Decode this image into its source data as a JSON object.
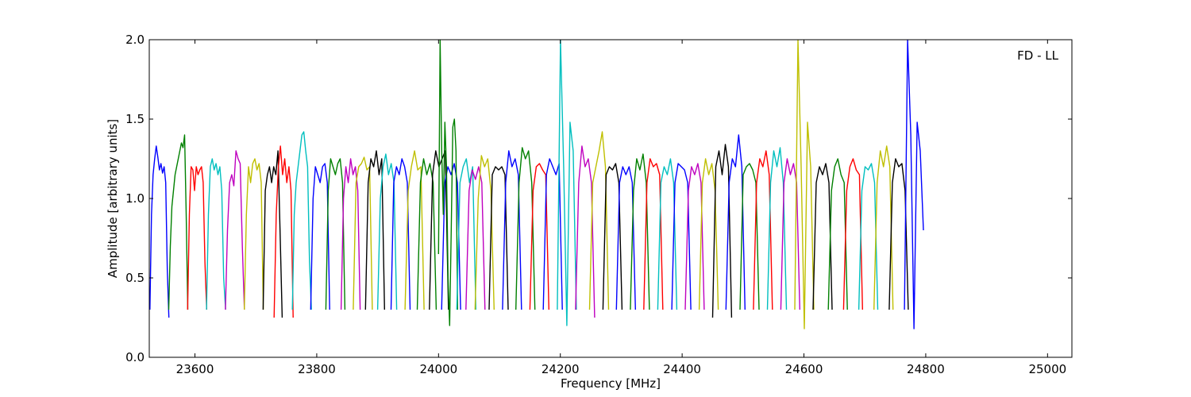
{
  "chart_data": {
    "type": "line",
    "xlabel": "Frequency [MHz]",
    "ylabel": "Amplitude [arbitrary units]",
    "annotation": "FD - LL",
    "xlim": [
      23525,
      25040
    ],
    "ylim": [
      0.0,
      2.0
    ],
    "x_ticks": [
      23600,
      23800,
      24000,
      24200,
      24400,
      24600,
      24800,
      25000
    ],
    "x_tick_labels": [
      "23600",
      "23800",
      "24000",
      "24200",
      "24400",
      "24600",
      "24800",
      "25000"
    ],
    "y_ticks": [
      0.0,
      0.5,
      1.0,
      1.5,
      2.0
    ],
    "y_tick_labels": [
      "0.0",
      "0.5",
      "1.0",
      "1.5",
      "2.0"
    ],
    "grid": false,
    "palette": [
      "#0000ff",
      "#008000",
      "#ff0000",
      "#00bfbf",
      "#bf00bf",
      "#bfbf00",
      "#000000"
    ],
    "segment_width_mhz": 31.25,
    "series": [
      {
        "start": 23526,
        "color": "#0000ff",
        "values": [
          0.3,
          0.9,
          1.15,
          1.25,
          1.33,
          1.26,
          1.18,
          1.22,
          1.16,
          1.2,
          1.1,
          0.55,
          0.25
        ]
      },
      {
        "start": 23557,
        "color": "#008000",
        "values": [
          0.3,
          0.7,
          0.95,
          1.05,
          1.15,
          1.2,
          1.25,
          1.3,
          1.35,
          1.32,
          1.4,
          0.9,
          0.3
        ]
      },
      {
        "start": 23588,
        "color": "#ff0000",
        "values": [
          0.3,
          0.9,
          1.2,
          1.18,
          1.05,
          1.2,
          1.15,
          1.18,
          1.2,
          1.1,
          0.6,
          0.3
        ]
      },
      {
        "start": 23619,
        "color": "#00bfbf",
        "values": [
          0.3,
          0.9,
          1.2,
          1.25,
          1.18,
          1.22,
          1.15,
          1.2,
          1.05,
          0.5,
          0.3
        ]
      },
      {
        "start": 23650,
        "color": "#bf00bf",
        "values": [
          0.3,
          0.8,
          1.1,
          1.15,
          1.08,
          1.3,
          1.25,
          1.22,
          0.7,
          0.3
        ]
      },
      {
        "start": 23681,
        "color": "#bfbf00",
        "values": [
          0.3,
          0.9,
          1.2,
          1.1,
          1.22,
          1.25,
          1.18,
          1.22,
          1.1,
          0.3
        ]
      },
      {
        "start": 23712,
        "color": "#000000",
        "values": [
          0.3,
          1.05,
          1.15,
          1.2,
          1.1,
          1.2,
          1.15,
          1.3,
          0.8,
          0.25
        ]
      },
      {
        "start": 23730,
        "color": "#ff0000",
        "values": [
          0.25,
          0.9,
          1.2,
          1.33,
          1.15,
          1.25,
          1.1,
          1.2,
          1.05,
          0.25
        ]
      },
      {
        "start": 23760,
        "color": "#00bfbf",
        "values": [
          0.3,
          0.9,
          1.1,
          1.2,
          1.3,
          1.4,
          1.42,
          1.3,
          1.2,
          0.6,
          0.3
        ]
      },
      {
        "start": 23790,
        "color": "#0000ff",
        "values": [
          0.3,
          1.0,
          1.2,
          1.15,
          1.1,
          1.2,
          1.22,
          1.1,
          0.3
        ]
      },
      {
        "start": 23815,
        "color": "#008000",
        "values": [
          0.3,
          1.05,
          1.25,
          1.2,
          1.15,
          1.22,
          1.25,
          1.1,
          0.3
        ]
      },
      {
        "start": 23840,
        "color": "#bf00bf",
        "values": [
          0.3,
          1.0,
          1.2,
          1.1,
          1.25,
          1.15,
          1.2,
          1.05,
          0.3
        ]
      },
      {
        "start": 23860,
        "color": "#bfbf00",
        "values": [
          0.3,
          1.1,
          1.2,
          1.22,
          1.26,
          1.18,
          1.2,
          0.3
        ]
      },
      {
        "start": 23880,
        "color": "#000000",
        "values": [
          0.3,
          1.1,
          1.25,
          1.2,
          1.3,
          1.15,
          1.25,
          0.3
        ]
      },
      {
        "start": 23900,
        "color": "#00bfbf",
        "values": [
          0.3,
          1.0,
          1.2,
          1.28,
          1.15,
          1.22,
          1.1,
          0.3
        ]
      },
      {
        "start": 23922,
        "color": "#0000ff",
        "values": [
          0.3,
          1.1,
          1.2,
          1.15,
          1.25,
          1.2,
          1.1,
          0.3
        ]
      },
      {
        "start": 23945,
        "color": "#bfbf00",
        "values": [
          0.3,
          1.05,
          1.2,
          1.3,
          1.18,
          1.2,
          0.3
        ]
      },
      {
        "start": 23965,
        "color": "#008000",
        "values": [
          0.3,
          1.1,
          1.25,
          1.15,
          1.22,
          1.1,
          0.3
        ]
      },
      {
        "start": 23985,
        "color": "#000000",
        "values": [
          0.3,
          1.15,
          1.3,
          1.2,
          1.25,
          1.3,
          0.3
        ]
      },
      {
        "start": 24005,
        "color": "#0000ff",
        "values": [
          0.3,
          1.1,
          1.2,
          1.15,
          1.22,
          1.1,
          0.3
        ]
      },
      {
        "start": 24000,
        "color": "#008000",
        "values": [
          0.65,
          2.0,
          1.3,
          0.9,
          1.48,
          1.2,
          0.5,
          0.2,
          0.8,
          1.45,
          1.5,
          1.3,
          0.3
        ]
      },
      {
        "start": 24030,
        "color": "#00bfbf",
        "values": [
          0.3,
          1.1,
          1.2,
          1.25,
          1.1,
          1.2,
          0.3
        ]
      },
      {
        "start": 24045,
        "color": "#bf00bf",
        "values": [
          0.3,
          1.05,
          1.18,
          1.12,
          1.2,
          1.1,
          0.3
        ]
      },
      {
        "start": 24060,
        "color": "#bfbf00",
        "values": [
          0.3,
          1.0,
          1.27,
          1.2,
          1.25,
          1.05,
          0.3
        ]
      },
      {
        "start": 24083,
        "color": "#000000",
        "values": [
          0.3,
          1.15,
          1.2,
          1.18,
          1.2,
          1.15,
          0.3
        ]
      },
      {
        "start": 24105,
        "color": "#0000ff",
        "values": [
          0.3,
          1.1,
          1.3,
          1.2,
          1.25,
          1.15,
          0.3
        ]
      },
      {
        "start": 24127,
        "color": "#008000",
        "values": [
          0.3,
          1.1,
          1.32,
          1.25,
          1.3,
          1.1,
          0.3
        ]
      },
      {
        "start": 24150,
        "color": "#ff0000",
        "values": [
          0.3,
          1.05,
          1.2,
          1.22,
          1.18,
          1.15,
          0.3
        ]
      },
      {
        "start": 24172,
        "color": "#0000ff",
        "values": [
          0.3,
          1.15,
          1.25,
          1.2,
          1.15,
          1.22,
          0.3
        ]
      },
      {
        "start": 24195,
        "color": "#00bfbf",
        "values": [
          0.3,
          2.0,
          1.2,
          0.2,
          1.48,
          1.3,
          0.3
        ]
      },
      {
        "start": 24225,
        "color": "#bf00bf",
        "values": [
          0.3,
          1.1,
          1.33,
          1.2,
          1.25,
          1.1,
          0.25
        ]
      },
      {
        "start": 24248,
        "color": "#bfbf00",
        "values": [
          0.3,
          1.1,
          1.2,
          1.3,
          1.42,
          1.2,
          0.3
        ]
      },
      {
        "start": 24270,
        "color": "#000000",
        "values": [
          0.3,
          1.15,
          1.2,
          1.18,
          1.22,
          1.1,
          0.3
        ]
      },
      {
        "start": 24292,
        "color": "#0000ff",
        "values": [
          0.3,
          1.1,
          1.2,
          1.15,
          1.2,
          1.1,
          0.3
        ]
      },
      {
        "start": 24315,
        "color": "#008000",
        "values": [
          0.3,
          1.05,
          1.25,
          1.18,
          1.28,
          1.1,
          0.3
        ]
      },
      {
        "start": 24337,
        "color": "#ff0000",
        "values": [
          0.3,
          1.1,
          1.25,
          1.2,
          1.22,
          1.15,
          0.3
        ]
      },
      {
        "start": 24360,
        "color": "#00bfbf",
        "values": [
          0.3,
          1.1,
          1.2,
          1.15,
          1.25,
          1.1,
          0.3
        ]
      },
      {
        "start": 24383,
        "color": "#0000ff",
        "values": [
          0.3,
          1.1,
          1.22,
          1.2,
          1.18,
          1.1,
          0.3
        ]
      },
      {
        "start": 24405,
        "color": "#bf00bf",
        "values": [
          0.3,
          1.05,
          1.2,
          1.15,
          1.22,
          1.1,
          0.3
        ]
      },
      {
        "start": 24428,
        "color": "#bfbf00",
        "values": [
          0.3,
          1.1,
          1.25,
          1.15,
          1.22,
          1.05,
          0.3
        ]
      },
      {
        "start": 24450,
        "color": "#000000",
        "values": [
          0.25,
          1.2,
          1.3,
          1.15,
          1.34,
          1.2,
          0.25
        ]
      },
      {
        "start": 24472,
        "color": "#0000ff",
        "values": [
          0.3,
          1.1,
          1.25,
          1.2,
          1.4,
          1.2,
          0.3
        ]
      },
      {
        "start": 24495,
        "color": "#008000",
        "values": [
          0.3,
          1.15,
          1.2,
          1.22,
          1.18,
          1.1,
          0.3
        ]
      },
      {
        "start": 24517,
        "color": "#ff0000",
        "values": [
          0.3,
          1.1,
          1.25,
          1.2,
          1.3,
          1.15,
          0.3
        ]
      },
      {
        "start": 24540,
        "color": "#00bfbf",
        "values": [
          0.3,
          1.1,
          1.3,
          1.2,
          1.32,
          1.1,
          0.3
        ]
      },
      {
        "start": 24562,
        "color": "#bf00bf",
        "values": [
          0.3,
          1.1,
          1.25,
          1.15,
          1.22,
          1.1,
          0.3
        ]
      },
      {
        "start": 24585,
        "color": "#bfbf00",
        "values": [
          0.3,
          2.0,
          1.2,
          0.18,
          1.48,
          1.2,
          0.3
        ]
      },
      {
        "start": 24615,
        "color": "#000000",
        "values": [
          0.3,
          1.1,
          1.2,
          1.15,
          1.22,
          1.1,
          0.3
        ]
      },
      {
        "start": 24640,
        "color": "#008000",
        "values": [
          0.3,
          1.05,
          1.2,
          1.25,
          1.15,
          1.1,
          0.3
        ]
      },
      {
        "start": 24665,
        "color": "#ff0000",
        "values": [
          0.3,
          1.05,
          1.2,
          1.25,
          1.18,
          1.15,
          0.3
        ]
      },
      {
        "start": 24690,
        "color": "#00bfbf",
        "values": [
          0.3,
          1.05,
          1.2,
          1.18,
          1.22,
          1.1,
          0.3
        ]
      },
      {
        "start": 24715,
        "color": "#bfbf00",
        "values": [
          0.3,
          1.1,
          1.3,
          1.2,
          1.33,
          1.2,
          0.3
        ]
      },
      {
        "start": 24740,
        "color": "#000000",
        "values": [
          0.3,
          1.1,
          1.25,
          1.2,
          1.22,
          1.05,
          0.3
        ]
      },
      {
        "start": 24765,
        "color": "#0000ff",
        "values": [
          0.3,
          2.0,
          1.4,
          0.18,
          1.48,
          1.3,
          0.8
        ]
      }
    ]
  }
}
